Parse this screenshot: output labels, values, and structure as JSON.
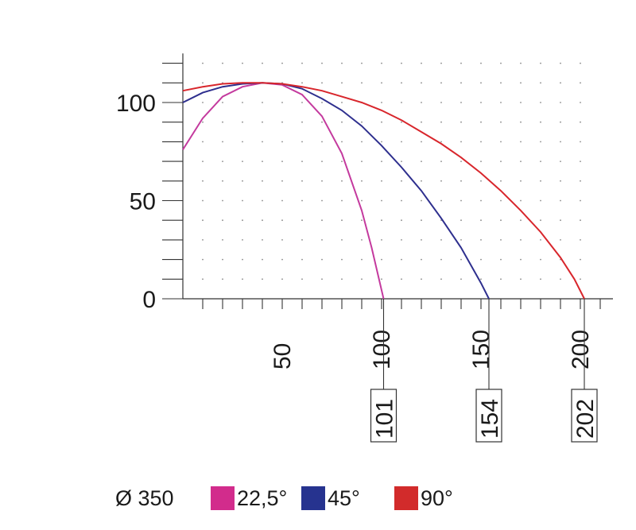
{
  "chart_data": {
    "type": "line",
    "title": "",
    "xlabel": "",
    "ylabel": "",
    "xlim": [
      0,
      210
    ],
    "ylim": [
      0,
      125
    ],
    "grid": true,
    "x_ticks": [
      50,
      100,
      150,
      200
    ],
    "y_ticks": [
      0,
      50,
      100
    ],
    "series": [
      {
        "name": "22,5°",
        "color": "#c43a9e",
        "points": [
          [
            0,
            76
          ],
          [
            10,
            92
          ],
          [
            20,
            103
          ],
          [
            30,
            108
          ],
          [
            40,
            110
          ],
          [
            50,
            109
          ],
          [
            60,
            104
          ],
          [
            70,
            93
          ],
          [
            80,
            74
          ],
          [
            90,
            45
          ],
          [
            95,
            26
          ],
          [
            101,
            0
          ]
        ]
      },
      {
        "name": "45°",
        "color": "#2e2f8e",
        "points": [
          [
            0,
            100
          ],
          [
            10,
            105
          ],
          [
            20,
            108
          ],
          [
            30,
            109.5
          ],
          [
            40,
            110
          ],
          [
            50,
            109.5
          ],
          [
            60,
            107
          ],
          [
            70,
            102
          ],
          [
            80,
            96
          ],
          [
            90,
            88
          ],
          [
            100,
            78
          ],
          [
            110,
            67
          ],
          [
            120,
            55
          ],
          [
            130,
            41
          ],
          [
            140,
            26
          ],
          [
            150,
            8
          ],
          [
            154,
            0
          ]
        ]
      },
      {
        "name": "90°",
        "color": "#d8262c",
        "points": [
          [
            0,
            106
          ],
          [
            10,
            108
          ],
          [
            20,
            109.5
          ],
          [
            30,
            110
          ],
          [
            40,
            110
          ],
          [
            50,
            109.5
          ],
          [
            60,
            108
          ],
          [
            70,
            106
          ],
          [
            80,
            103
          ],
          [
            90,
            100
          ],
          [
            100,
            96
          ],
          [
            110,
            91
          ],
          [
            120,
            85
          ],
          [
            130,
            79
          ],
          [
            140,
            72
          ],
          [
            150,
            64
          ],
          [
            160,
            55
          ],
          [
            170,
            45
          ],
          [
            180,
            34
          ],
          [
            190,
            21
          ],
          [
            197,
            10
          ],
          [
            202,
            0
          ]
        ]
      }
    ],
    "callouts": [
      "101",
      "154",
      "202"
    ],
    "callout_x": [
      101,
      154,
      202
    ],
    "legend": {
      "title": "Ø 350",
      "position": "bottom",
      "items": [
        {
          "label": "22,5°",
          "color": "#d22c8c"
        },
        {
          "label": "45°",
          "color": "#26338f"
        },
        {
          "label": "90°",
          "color": "#d22b2b"
        }
      ]
    }
  }
}
